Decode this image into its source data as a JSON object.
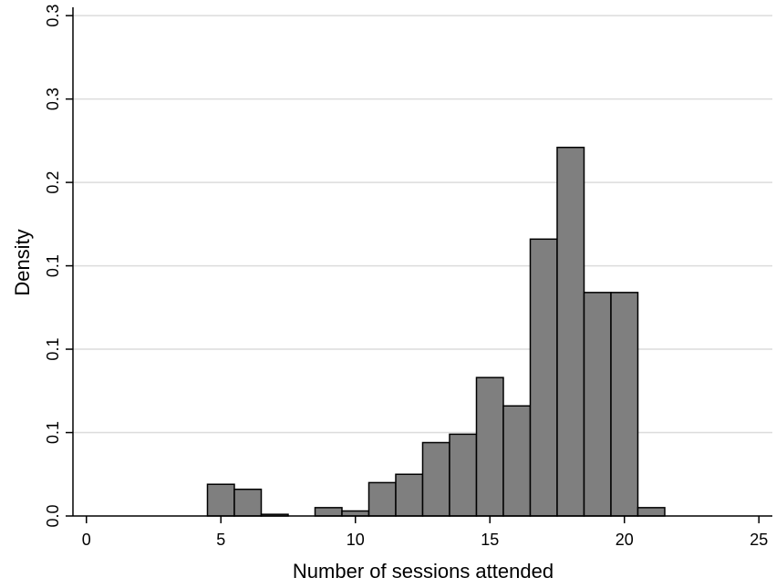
{
  "chart_data": {
    "type": "bar",
    "subtype": "histogram",
    "xlabel": "Number of sessions attended",
    "ylabel": "Density",
    "xlim": [
      -0.5,
      25.5
    ],
    "ylim": [
      0,
      0.305
    ],
    "x_ticks": [
      {
        "value": 0,
        "label": "0"
      },
      {
        "value": 5,
        "label": "5"
      },
      {
        "value": 10,
        "label": "10"
      },
      {
        "value": 15,
        "label": "15"
      },
      {
        "value": 20,
        "label": "20"
      },
      {
        "value": 25,
        "label": "25"
      }
    ],
    "y_ticks": [
      {
        "value": 0.0,
        "label": "0.0"
      },
      {
        "value": 0.05,
        "label": "0.1"
      },
      {
        "value": 0.1,
        "label": "0.1"
      },
      {
        "value": 0.15,
        "label": "0.1"
      },
      {
        "value": 0.2,
        "label": "0.2"
      },
      {
        "value": 0.25,
        "label": "0.3"
      },
      {
        "value": 0.3,
        "label": "0.3"
      }
    ],
    "bin_width": 1,
    "bins": [
      {
        "x": 5,
        "density": 0.019
      },
      {
        "x": 6,
        "density": 0.016
      },
      {
        "x": 7,
        "density": 0.001
      },
      {
        "x": 9,
        "density": 0.005
      },
      {
        "x": 10,
        "density": 0.003
      },
      {
        "x": 11,
        "density": 0.02
      },
      {
        "x": 12,
        "density": 0.025
      },
      {
        "x": 13,
        "density": 0.044
      },
      {
        "x": 14,
        "density": 0.049
      },
      {
        "x": 15,
        "density": 0.083
      },
      {
        "x": 16,
        "density": 0.066
      },
      {
        "x": 17,
        "density": 0.166
      },
      {
        "x": 18,
        "density": 0.221
      },
      {
        "x": 19,
        "density": 0.134
      },
      {
        "x": 20,
        "density": 0.134
      },
      {
        "x": 21,
        "density": 0.005
      }
    ],
    "bar_color": "#7f7f7f",
    "bar_edge_color": "#000000",
    "grid": true,
    "grid_color": "#dcdcdc"
  }
}
